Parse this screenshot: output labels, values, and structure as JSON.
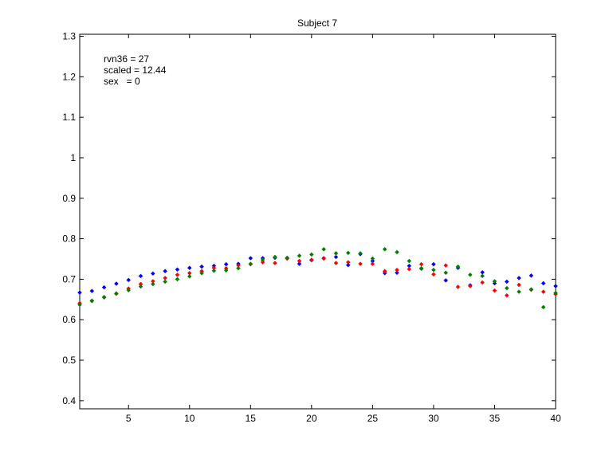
{
  "chart_data": {
    "type": "scatter",
    "title": "Subject 7",
    "xlabel": "",
    "ylabel": "",
    "xlim": [
      1,
      40
    ],
    "ylim": [
      0.38,
      1.305
    ],
    "x_ticks": [
      5,
      10,
      15,
      20,
      25,
      30,
      35,
      40
    ],
    "y_ticks": [
      0.4,
      0.5,
      0.6,
      0.7,
      0.8,
      0.9,
      1,
      1.1,
      1.2,
      1.3
    ],
    "y_tick_labels": [
      "0.4",
      "0.5",
      "0.6",
      "0.7",
      "0.8",
      "0.9",
      "1",
      "1.1",
      "1.2",
      "1.3"
    ],
    "grid": false,
    "annotations": [
      "rvn36 = 27",
      "scaled = 12.44",
      "sex   = 0"
    ],
    "x": [
      1,
      2,
      3,
      4,
      5,
      6,
      7,
      8,
      9,
      10,
      11,
      12,
      13,
      14,
      15,
      16,
      17,
      18,
      19,
      20,
      21,
      22,
      23,
      24,
      25,
      26,
      27,
      28,
      29,
      30,
      31,
      32,
      33,
      34,
      35,
      36,
      37,
      38,
      39,
      40
    ],
    "series": [
      {
        "color": "#0000ff",
        "values": [
          0.667,
          0.671,
          0.68,
          0.689,
          0.698,
          0.708,
          0.714,
          0.72,
          0.724,
          0.728,
          0.731,
          0.733,
          0.737,
          0.738,
          0.752,
          0.752,
          0.753,
          0.752,
          0.738,
          0.747,
          0.752,
          0.755,
          0.735,
          0.762,
          0.745,
          0.715,
          0.716,
          0.733,
          0.726,
          0.737,
          0.697,
          0.728,
          0.685,
          0.717,
          0.69,
          0.694,
          0.703,
          0.709,
          0.69,
          0.683
        ]
      },
      {
        "color": "#ff0000",
        "values": [
          0.641,
          0.646,
          0.655,
          0.664,
          0.677,
          0.688,
          0.695,
          0.703,
          0.711,
          0.715,
          0.72,
          0.728,
          0.727,
          0.734,
          0.737,
          0.742,
          0.74,
          0.751,
          0.745,
          0.748,
          0.751,
          0.74,
          0.742,
          0.738,
          0.738,
          0.72,
          0.723,
          0.725,
          0.737,
          0.712,
          0.734,
          0.681,
          0.683,
          0.692,
          0.672,
          0.66,
          0.686,
          0.674,
          0.669,
          0.663
        ]
      },
      {
        "color": "#008000",
        "values": [
          0.637,
          0.647,
          0.656,
          0.665,
          0.673,
          0.682,
          0.688,
          0.694,
          0.7,
          0.707,
          0.715,
          0.721,
          0.722,
          0.727,
          0.738,
          0.748,
          0.755,
          0.753,
          0.758,
          0.761,
          0.774,
          0.764,
          0.765,
          0.764,
          0.751,
          0.774,
          0.767,
          0.745,
          0.727,
          0.723,
          0.716,
          0.731,
          0.711,
          0.708,
          0.695,
          0.678,
          0.669,
          0.675,
          0.631,
          0.666
        ]
      }
    ]
  }
}
